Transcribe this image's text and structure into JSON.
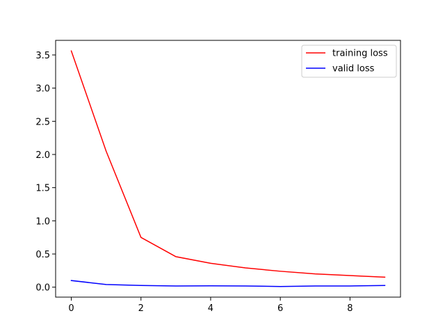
{
  "chart_data": {
    "type": "line",
    "title": "",
    "xlabel": "",
    "ylabel": "",
    "x": [
      0,
      1,
      2,
      3,
      4,
      5,
      6,
      7,
      8,
      9
    ],
    "xlim": [
      -0.45,
      9.45
    ],
    "ylim": [
      -0.15,
      3.72
    ],
    "xticks": [
      0,
      2,
      4,
      6,
      8
    ],
    "xtick_labels": [
      "0",
      "2",
      "4",
      "6",
      "8"
    ],
    "yticks": [
      0.0,
      0.5,
      1.0,
      1.5,
      2.0,
      2.5,
      3.0,
      3.5
    ],
    "ytick_labels": [
      "0.0",
      "0.5",
      "1.0",
      "1.5",
      "2.0",
      "2.5",
      "3.0",
      "3.5"
    ],
    "grid": false,
    "legend_position": "top-right",
    "series": [
      {
        "name": "training loss",
        "color": "#ff0000",
        "values": [
          3.56,
          2.05,
          0.75,
          0.46,
          0.36,
          0.29,
          0.24,
          0.2,
          0.175,
          0.15
        ]
      },
      {
        "name": "valid loss",
        "color": "#0000ff",
        "values": [
          0.1,
          0.04,
          0.025,
          0.018,
          0.02,
          0.018,
          0.01,
          0.018,
          0.018,
          0.025
        ]
      }
    ]
  }
}
